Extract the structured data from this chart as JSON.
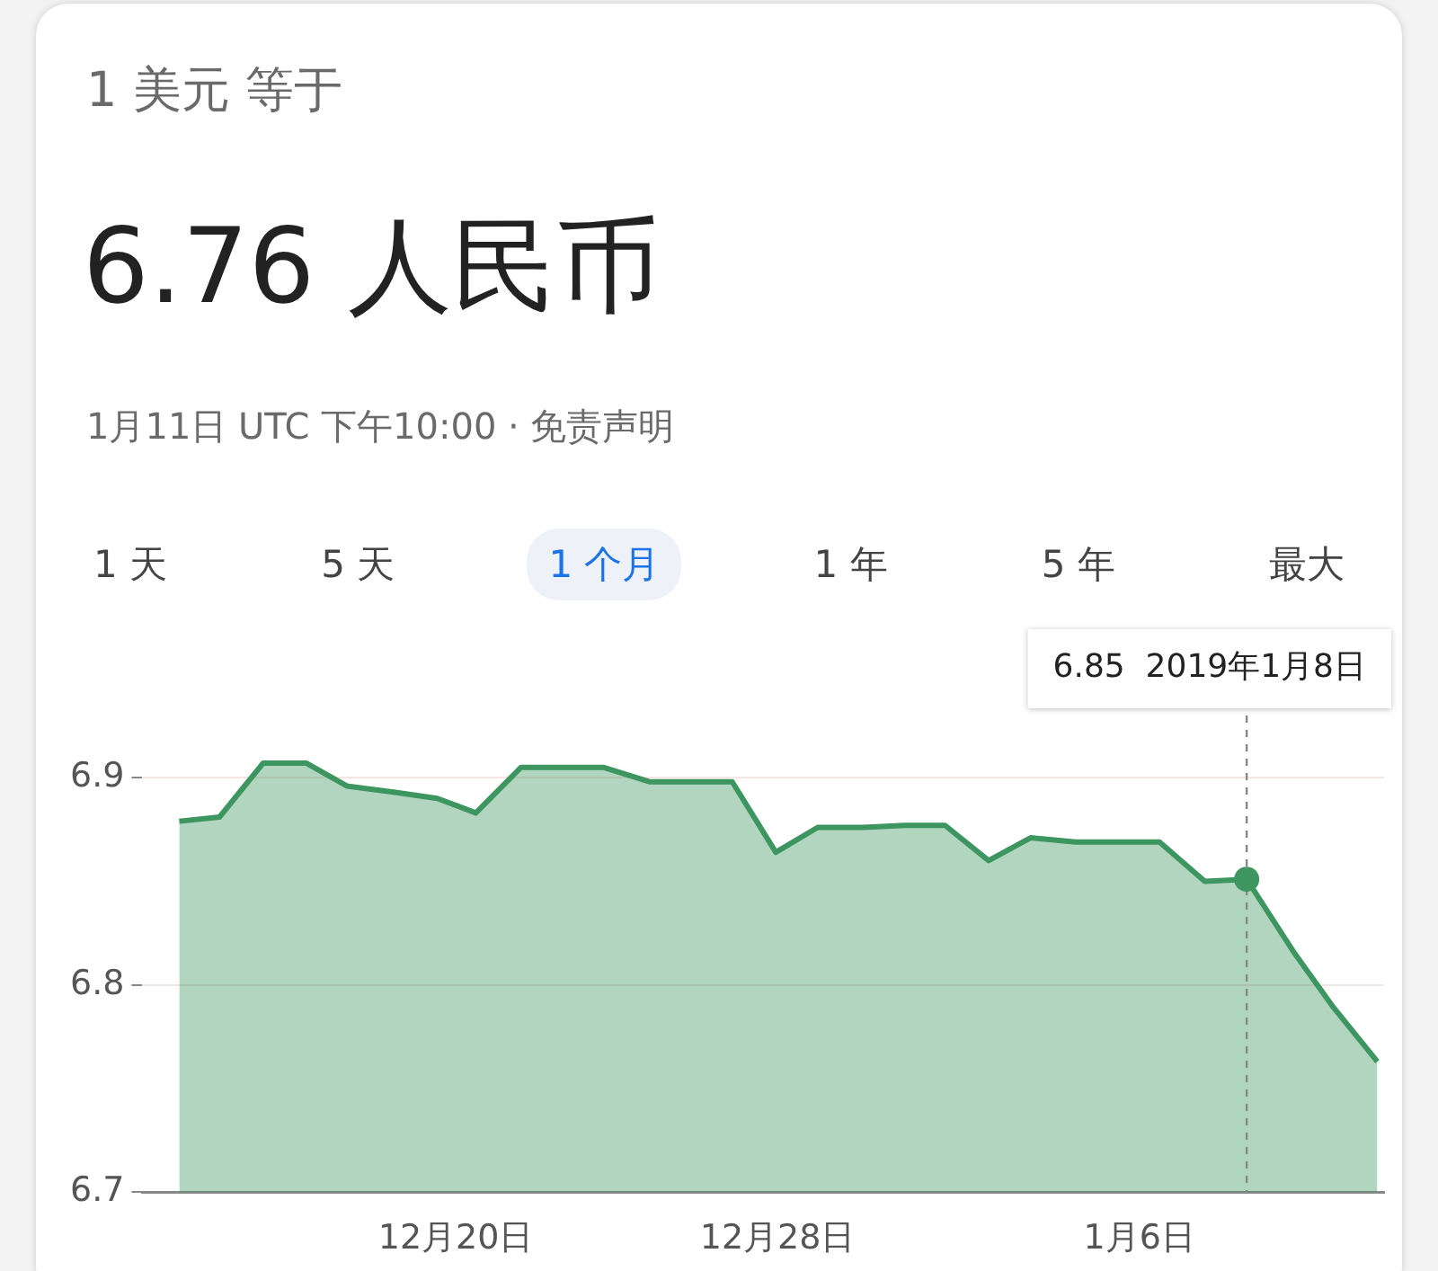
{
  "chart_data": {
    "type": "area",
    "title": "6.76 人民币",
    "subtitle": "1月11日 UTC 下午10:00 · 免责声明",
    "annotations": [
      "1 美元 等于",
      "1 天",
      "5 天",
      "1 个月",
      "1 年",
      "5 年",
      "最大"
    ],
    "x": [
      "2018-12-13T03:00",
      "2018-12-14T03:00",
      "2018-12-15T05:00",
      "2018-12-16T07:00",
      "2018-12-17T07:00",
      "2018-12-18T11:00",
      "2018-12-19T13:00",
      "2018-12-20T12:00",
      "2018-12-21T15:00",
      "2018-12-22T14:00",
      "2018-12-23T16:00",
      "2018-12-24T20:00",
      "2018-12-25T19:00",
      "2018-12-26T21:00",
      "2018-12-27T23:00",
      "2018-12-29T00:00",
      "2018-12-30T03:00",
      "2018-12-31T04:00",
      "2019-01-01T04:00",
      "2019-01-02T06:00",
      "2019-01-03T07:00",
      "2019-01-04T10:00",
      "2019-01-05T11:00",
      "2019-01-06T12:00",
      "2019-01-07T15:00",
      "2019-01-08T16:00",
      "2019-01-09T20:00",
      "2019-01-10T19:00",
      "2019-01-11T22:00"
    ],
    "series": [
      {
        "color": "#3d9560",
        "values": [
          6.879,
          6.881,
          6.907,
          6.907,
          6.896,
          6.893,
          6.89,
          6.883,
          6.905,
          6.905,
          6.905,
          6.898,
          6.898,
          6.898,
          6.864,
          6.876,
          6.876,
          6.877,
          6.877,
          6.86,
          6.871,
          6.869,
          6.869,
          6.869,
          6.85,
          6.851,
          6.816,
          6.79,
          6.763
        ]
      }
    ],
    "xlim": [
      "2018-12-12T05:00",
      "2019-01-12T02:00"
    ],
    "xticks": [
      {
        "value": "2018-12-20",
        "label": "12月20日"
      },
      {
        "value": "2018-12-28",
        "label": "12月28日"
      },
      {
        "value": "2019-01-06",
        "label": "1月6日"
      }
    ],
    "ylim": [
      6.7,
      6.93
    ],
    "yticks": [
      6.7,
      6.8,
      6.9
    ],
    "grid": "y",
    "legend": false,
    "marker": "none",
    "line_style": "solid",
    "ref_lines": [
      {
        "axis": "x",
        "value": "2019-01-08T16:00",
        "line_style": "dashed",
        "color": "#888888",
        "label": "6.85  2019年1月8日"
      }
    ]
  }
}
